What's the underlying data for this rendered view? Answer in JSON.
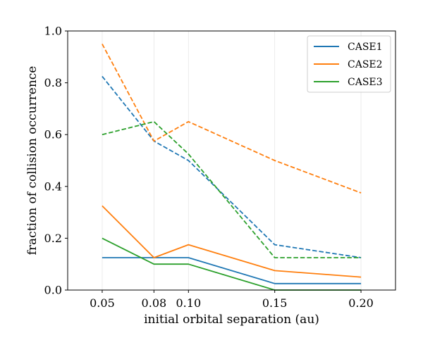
{
  "chart_data": {
    "type": "line",
    "title": "",
    "xlabel": "initial orbital separation (au)",
    "ylabel": "fraction of collision occurrence",
    "x": [
      0.05,
      0.08,
      0.1,
      0.15,
      0.2
    ],
    "xlim": [
      0.03,
      0.22
    ],
    "ylim": [
      0.0,
      1.0
    ],
    "xticks": [
      0.05,
      0.08,
      0.1,
      0.15,
      0.2
    ],
    "xtick_labels": [
      "0.05",
      "0.08",
      "0.10",
      "0.15",
      "0.20"
    ],
    "yticks": [
      0.0,
      0.2,
      0.4,
      0.6,
      0.8,
      1.0
    ],
    "ytick_labels": [
      "0.0",
      "0.2",
      "0.4",
      "0.6",
      "0.8",
      "1.0"
    ],
    "grid": "vertical lines at x ticks",
    "legend_position": "top-right",
    "series": [
      {
        "name": "CASE1",
        "color": "#1f77b4",
        "style": "solid",
        "values": [
          0.125,
          0.125,
          0.125,
          0.025,
          0.025
        ]
      },
      {
        "name": "CASE1",
        "color": "#1f77b4",
        "style": "dashed",
        "values": [
          0.825,
          0.575,
          0.5,
          0.175,
          0.125
        ]
      },
      {
        "name": "CASE2",
        "color": "#ff7f0e",
        "style": "solid",
        "values": [
          0.325,
          0.125,
          0.175,
          0.075,
          0.05
        ]
      },
      {
        "name": "CASE2",
        "color": "#ff7f0e",
        "style": "dashed",
        "values": [
          0.95,
          0.575,
          0.65,
          0.5,
          0.375
        ]
      },
      {
        "name": "CASE3",
        "color": "#2ca02c",
        "style": "solid",
        "values": [
          0.2,
          0.1,
          0.1,
          0.0,
          0.0
        ]
      },
      {
        "name": "CASE3",
        "color": "#2ca02c",
        "style": "dashed",
        "values": [
          0.6,
          0.65,
          0.525,
          0.125,
          0.125
        ]
      }
    ],
    "legend": [
      {
        "label": "CASE1",
        "color": "#1f77b4"
      },
      {
        "label": "CASE2",
        "color": "#ff7f0e"
      },
      {
        "label": "CASE3",
        "color": "#2ca02c"
      }
    ]
  }
}
